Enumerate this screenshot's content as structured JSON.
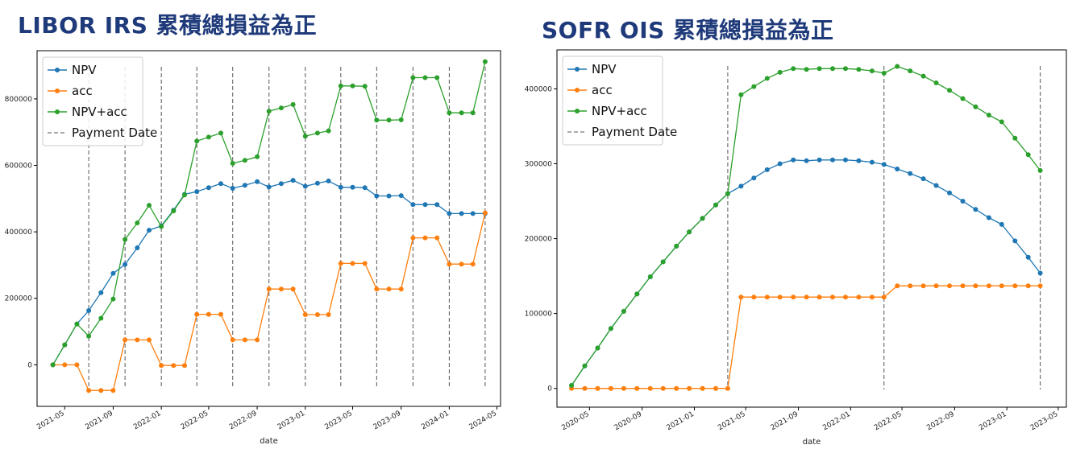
{
  "chart_data": [
    {
      "id": "libor",
      "type": "line",
      "title": "LIBOR IRS 累積總損益為正",
      "xlabel": "date",
      "ylabel": "",
      "xlim": [
        "2021-02-20",
        "2024-05-10"
      ],
      "ylim": [
        -125000,
        945000
      ],
      "yticks": [
        0,
        200000,
        400000,
        600000,
        800000
      ],
      "yticklabels": [
        "0",
        "200000",
        "400000",
        "600000",
        "800000"
      ],
      "xticks": [
        "2021-05-01",
        "2021-09-01",
        "2022-01-01",
        "2022-05-01",
        "2022-09-01",
        "2023-01-01",
        "2023-05-01",
        "2023-09-01",
        "2024-01-01",
        "2024-05-01"
      ],
      "xticklabels": [
        "2021-05",
        "2021-09",
        "2022-01",
        "2022-05",
        "2022-09",
        "2023-01",
        "2023-05",
        "2023-09",
        "2024-01",
        "2024-05"
      ],
      "legend": {
        "placement": "upper-left",
        "entries": [
          "NPV",
          "acc",
          "NPV+acc",
          "Payment Date"
        ]
      },
      "payment_dates": [
        "2021-07-01",
        "2021-10-01",
        "2022-01-01",
        "2022-04-01",
        "2022-07-01",
        "2022-10-01",
        "2023-01-01",
        "2023-04-01",
        "2023-07-01",
        "2023-10-01",
        "2024-01-01",
        "2024-04-01"
      ],
      "x": [
        "2021-04-01",
        "2021-05-01",
        "2021-06-01",
        "2021-07-01",
        "2021-08-01",
        "2021-09-01",
        "2021-10-01",
        "2021-11-01",
        "2021-12-01",
        "2022-01-01",
        "2022-02-01",
        "2022-03-01",
        "2022-04-01",
        "2022-05-01",
        "2022-06-01",
        "2022-07-01",
        "2022-08-01",
        "2022-09-01",
        "2022-10-01",
        "2022-11-01",
        "2022-12-01",
        "2023-01-01",
        "2023-02-01",
        "2023-03-01",
        "2023-04-01",
        "2023-05-01",
        "2023-06-01",
        "2023-07-01",
        "2023-08-01",
        "2023-09-01",
        "2023-10-01",
        "2023-11-01",
        "2023-12-01",
        "2024-01-01",
        "2024-02-01",
        "2024-03-01",
        "2024-04-01"
      ],
      "series": [
        {
          "name": "NPV",
          "color": "#1f77b4",
          "values": [
            0,
            60000,
            123000,
            163000,
            217000,
            275000,
            302000,
            352000,
            405000,
            418000,
            465000,
            513000,
            521000,
            533000,
            545000,
            531000,
            540000,
            551000,
            535000,
            545000,
            555000,
            537000,
            546000,
            553000,
            534000,
            534000,
            533000,
            508000,
            508000,
            509000,
            482000,
            482000,
            482000,
            455000,
            455000,
            455000,
            455000
          ]
        },
        {
          "name": "acc",
          "color": "#ff7f0e",
          "values": [
            0,
            0,
            0,
            -77000,
            -77000,
            -77000,
            75000,
            75000,
            75000,
            -2000,
            -2000,
            -2000,
            152000,
            152000,
            152000,
            75000,
            75000,
            75000,
            228000,
            228000,
            228000,
            151000,
            151000,
            151000,
            305000,
            305000,
            305000,
            228000,
            228000,
            228000,
            382000,
            382000,
            382000,
            303000,
            303000,
            303000,
            457000
          ]
        },
        {
          "name": "NPV+acc",
          "color": "#2ca02c",
          "values": [
            0,
            60000,
            123000,
            86000,
            140000,
            198000,
            377000,
            427000,
            480000,
            416000,
            463000,
            511000,
            673000,
            685000,
            697000,
            606000,
            615000,
            626000,
            763000,
            773000,
            783000,
            688000,
            697000,
            704000,
            839000,
            839000,
            838000,
            736000,
            736000,
            737000,
            864000,
            864000,
            864000,
            758000,
            758000,
            758000,
            912000
          ]
        }
      ]
    },
    {
      "id": "sofr",
      "type": "line",
      "title": "SOFR OIS 累積總損益為正",
      "xlabel": "date",
      "ylabel": "",
      "xlim": [
        "2020-02-15",
        "2023-05-20"
      ],
      "ylim": [
        -25000,
        452000
      ],
      "yticks": [
        0,
        100000,
        200000,
        300000,
        400000
      ],
      "yticklabels": [
        "0",
        "100000",
        "200000",
        "300000",
        "400000"
      ],
      "xticks": [
        "2020-05-01",
        "2020-09-01",
        "2021-01-01",
        "2021-05-01",
        "2021-09-01",
        "2022-01-01",
        "2022-05-01",
        "2022-09-01",
        "2023-01-01",
        "2023-05-01"
      ],
      "xticklabels": [
        "2020-05",
        "2020-09",
        "2021-01",
        "2021-05",
        "2021-09",
        "2022-01",
        "2022-05",
        "2022-09",
        "2023-01",
        "2023-05"
      ],
      "legend": {
        "placement": "upper-left",
        "entries": [
          "NPV",
          "acc",
          "NPV+acc",
          "Payment Date"
        ]
      },
      "payment_dates": [
        "2021-03-20",
        "2022-03-20",
        "2023-03-20"
      ],
      "x": [
        "2020-03-20",
        "2020-04-20",
        "2020-05-20",
        "2020-06-20",
        "2020-07-20",
        "2020-08-20",
        "2020-09-20",
        "2020-10-20",
        "2020-11-20",
        "2020-12-20",
        "2021-01-20",
        "2021-02-20",
        "2021-03-20",
        "2021-04-20",
        "2021-05-20",
        "2021-06-20",
        "2021-07-20",
        "2021-08-20",
        "2021-09-20",
        "2021-10-20",
        "2021-11-20",
        "2021-12-20",
        "2022-01-20",
        "2022-02-20",
        "2022-03-20",
        "2022-04-20",
        "2022-05-20",
        "2022-06-20",
        "2022-07-20",
        "2022-08-20",
        "2022-09-20",
        "2022-10-20",
        "2022-11-20",
        "2022-12-20",
        "2023-01-20",
        "2023-02-20",
        "2023-03-20"
      ],
      "series": [
        {
          "name": "NPV",
          "color": "#1f77b4",
          "values": [
            4000,
            30000,
            54000,
            80000,
            103000,
            126000,
            149000,
            169000,
            190000,
            209000,
            227000,
            245000,
            260000,
            270000,
            281000,
            292000,
            300000,
            305000,
            304000,
            305000,
            305000,
            305000,
            304000,
            302000,
            299000,
            293000,
            287000,
            280000,
            271000,
            261000,
            250000,
            239000,
            228000,
            219000,
            197000,
            175000,
            154000
          ]
        },
        {
          "name": "acc",
          "color": "#ff7f0e",
          "values": [
            0,
            0,
            0,
            0,
            0,
            0,
            0,
            0,
            0,
            0,
            0,
            0,
            0,
            122000,
            122000,
            122000,
            122000,
            122000,
            122000,
            122000,
            122000,
            122000,
            122000,
            122000,
            122000,
            137000,
            137000,
            137000,
            137000,
            137000,
            137000,
            137000,
            137000,
            137000,
            137000,
            137000,
            137000
          ]
        },
        {
          "name": "NPV+acc",
          "color": "#2ca02c",
          "values": [
            4000,
            30000,
            54000,
            80000,
            103000,
            126000,
            149000,
            169000,
            190000,
            209000,
            227000,
            245000,
            260000,
            392000,
            403000,
            414000,
            422000,
            427000,
            426000,
            427000,
            427000,
            427000,
            426000,
            424000,
            421000,
            430000,
            424000,
            417000,
            408000,
            398000,
            387000,
            376000,
            365000,
            356000,
            334000,
            312000,
            291000
          ]
        }
      ]
    }
  ]
}
